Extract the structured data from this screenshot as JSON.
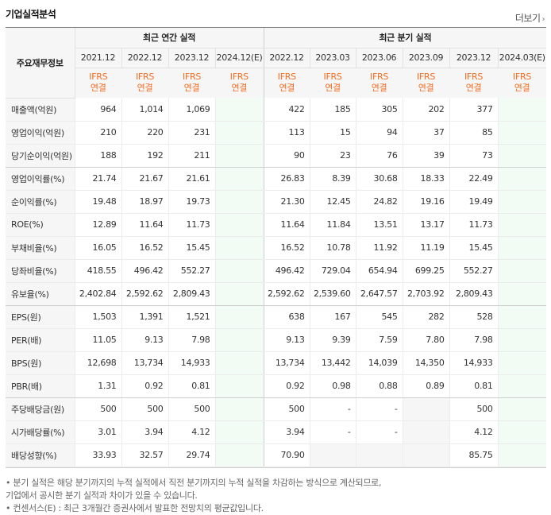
{
  "header": {
    "title": "기업실적분석",
    "more_label": "더보기",
    "more_icon": "chevron-right-icon"
  },
  "table": {
    "row_header_label": "주요재무정보",
    "group_annual": "최근 연간 실적",
    "group_quarterly": "최근 분기 실적",
    "periods": [
      "2021.12",
      "2022.12",
      "2023.12",
      "2024.12(E)",
      "2022.12",
      "2023.03",
      "2023.06",
      "2023.09",
      "2023.12",
      "2024.03(E)"
    ],
    "ifrs_top": "IFRS",
    "ifrs_bottom": "연결",
    "rows": [
      {
        "label": "매출액(억원)",
        "values": [
          "964",
          "1,014",
          "1,069",
          "",
          "422",
          "185",
          "305",
          "202",
          "377",
          ""
        ]
      },
      {
        "label": "영업이익(억원)",
        "values": [
          "210",
          "220",
          "231",
          "",
          "113",
          "15",
          "94",
          "37",
          "85",
          ""
        ]
      },
      {
        "label": "당기순이익(억원)",
        "values": [
          "188",
          "192",
          "211",
          "",
          "90",
          "23",
          "76",
          "39",
          "73",
          ""
        ]
      },
      {
        "label": "영업이익률(%)",
        "values": [
          "21.74",
          "21.67",
          "21.61",
          "",
          "26.83",
          "8.39",
          "30.68",
          "18.33",
          "22.49",
          ""
        ]
      },
      {
        "label": "순이익률(%)",
        "values": [
          "19.48",
          "18.97",
          "19.73",
          "",
          "21.30",
          "12.45",
          "24.82",
          "19.16",
          "19.49",
          ""
        ]
      },
      {
        "label": "ROE(%)",
        "values": [
          "12.89",
          "11.64",
          "11.73",
          "",
          "11.64",
          "11.84",
          "13.51",
          "13.17",
          "11.73",
          ""
        ]
      },
      {
        "label": "부채비율(%)",
        "values": [
          "16.05",
          "16.52",
          "15.45",
          "",
          "16.52",
          "10.78",
          "11.92",
          "11.19",
          "15.45",
          ""
        ]
      },
      {
        "label": "당좌비율(%)",
        "values": [
          "418.55",
          "496.42",
          "552.27",
          "",
          "496.42",
          "729.04",
          "654.94",
          "699.25",
          "552.27",
          ""
        ]
      },
      {
        "label": "유보율(%)",
        "values": [
          "2,402.84",
          "2,592.62",
          "2,809.43",
          "",
          "2,592.62",
          "2,539.60",
          "2,647.57",
          "2,703.92",
          "2,809.43",
          ""
        ]
      },
      {
        "label": "EPS(원)",
        "values": [
          "1,503",
          "1,391",
          "1,521",
          "",
          "638",
          "167",
          "545",
          "282",
          "528",
          ""
        ]
      },
      {
        "label": "PER(배)",
        "values": [
          "11.05",
          "9.13",
          "7.98",
          "",
          "9.13",
          "9.39",
          "7.59",
          "7.80",
          "7.98",
          ""
        ]
      },
      {
        "label": "BPS(원)",
        "values": [
          "12,698",
          "13,734",
          "14,933",
          "",
          "13,734",
          "13,442",
          "14,039",
          "14,350",
          "14,933",
          ""
        ]
      },
      {
        "label": "PBR(배)",
        "values": [
          "1.31",
          "0.92",
          "0.81",
          "",
          "0.92",
          "0.98",
          "0.88",
          "0.89",
          "0.81",
          ""
        ]
      },
      {
        "label": "주당배당금(원)",
        "values": [
          "500",
          "500",
          "500",
          "",
          "500",
          "-",
          "-",
          "",
          "500",
          ""
        ]
      },
      {
        "label": "시가배당률(%)",
        "values": [
          "3.01",
          "3.94",
          "4.12",
          "",
          "3.94",
          "-",
          "-",
          "",
          "4.12",
          ""
        ]
      },
      {
        "label": "배당성향(%)",
        "values": [
          "33.93",
          "32.57",
          "29.74",
          "",
          "70.90",
          "",
          "",
          "",
          "85.75",
          ""
        ]
      }
    ]
  },
  "notes": [
    "• 분기 실적은 해당 분기까지의 누적 실적에서 직전 분기까지의 누적 실적을 차감하는 방식으로 계산되므로,",
    "   기업에서 공시한 분기 실적과 차이가 있을 수 있습니다.",
    "• 컨센서스(E) : 최근 3개월간 증권사에서 발표한 전망치의 평균값입니다."
  ]
}
